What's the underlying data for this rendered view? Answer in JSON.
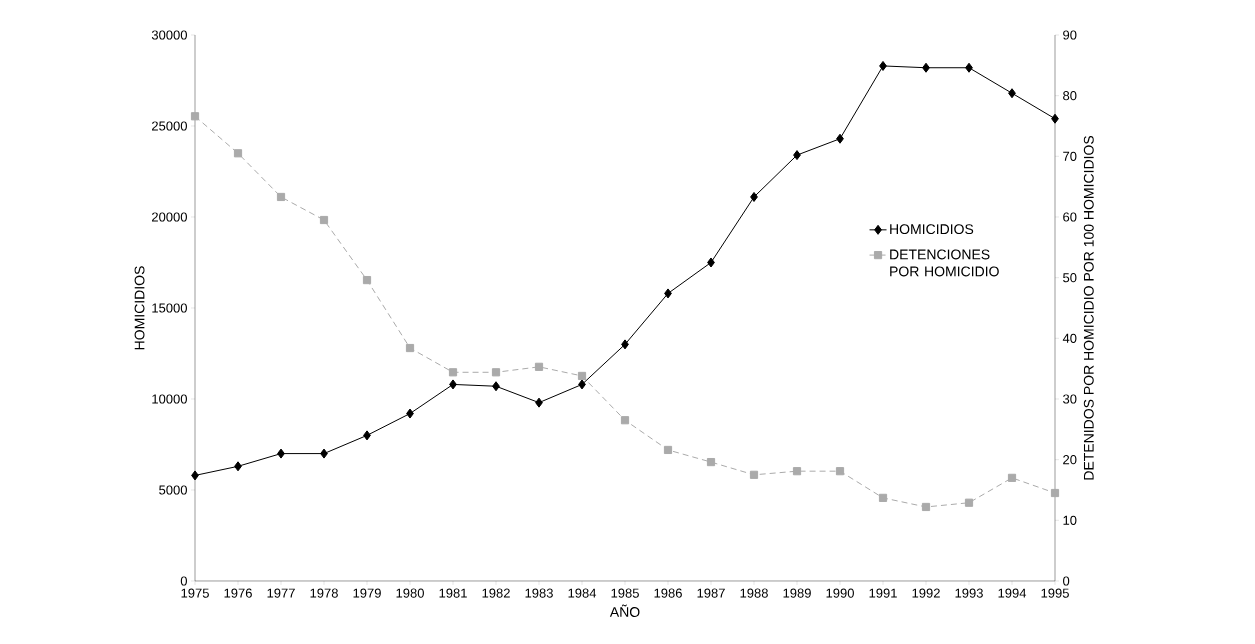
{
  "chart_data": {
    "type": "line",
    "xlabel": "AÑO",
    "ylabel": "HOMICIDIOS",
    "y2label": "DETENIDOS POR HOMICIDIO POR 100 HOMICIDIOS",
    "x": [
      1975,
      1976,
      1977,
      1978,
      1979,
      1980,
      1981,
      1982,
      1983,
      1984,
      1985,
      1986,
      1987,
      1988,
      1989,
      1990,
      1991,
      1992,
      1993,
      1994,
      1995
    ],
    "series": [
      {
        "name": "HOMICIDIOS",
        "color": "#000000",
        "marker": "diamond",
        "line_style": "solid",
        "axis": "y",
        "values": [
          5800,
          6300,
          7000,
          7000,
          8000,
          9200,
          10800,
          10700,
          9800,
          10800,
          13000,
          15800,
          17500,
          21100,
          23400,
          24300,
          28300,
          28200,
          28200,
          26800,
          25400
        ]
      },
      {
        "name": "DETENCIONES POR HOMICIDIO",
        "color": "#aaaaaa",
        "marker": "square",
        "line_style": "dashed",
        "axis": "y2",
        "values": [
          76.6,
          70.5,
          63.3,
          59.5,
          49.6,
          38.4,
          34.4,
          34.4,
          35.3,
          33.8,
          26.5,
          21.6,
          19.6,
          17.5,
          18.1,
          18.1,
          13.7,
          12.2,
          12.9,
          17.0,
          14.5
        ]
      }
    ],
    "xlim": [
      1975,
      1995
    ],
    "xticks": [
      1975,
      1976,
      1977,
      1978,
      1979,
      1980,
      1981,
      1982,
      1983,
      1984,
      1985,
      1986,
      1987,
      1988,
      1989,
      1990,
      1991,
      1992,
      1993,
      1994,
      1995
    ],
    "ylim": [
      0,
      30000
    ],
    "yticks": [
      0,
      5000,
      10000,
      15000,
      20000,
      25000,
      30000
    ],
    "y2lim": [
      0,
      90
    ],
    "y2ticks": [
      0,
      10,
      20,
      30,
      40,
      50,
      60,
      70,
      80,
      90
    ],
    "grid": false,
    "legend": "right"
  }
}
